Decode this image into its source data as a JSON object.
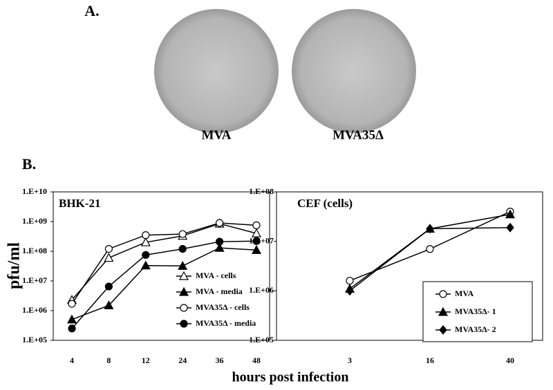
{
  "panel_a": {
    "label": "A.",
    "plates": [
      "MVA",
      "MVA35Δ"
    ]
  },
  "panel_b": {
    "label": "B.",
    "y_label": "pfu/ml",
    "x_label": "hours post infection"
  },
  "chart_data": [
    {
      "type": "line",
      "title": "BHK-21",
      "log_scale": true,
      "categories": [
        "4",
        "8",
        "12",
        "24",
        "36",
        "48"
      ],
      "ylim": [
        100000,
        10000000000
      ],
      "yticks": [
        {
          "value": 100000,
          "label": "1.E+05"
        },
        {
          "value": 1000000,
          "label": "1.E+06"
        },
        {
          "value": 10000000,
          "label": "1.E+07"
        },
        {
          "value": 100000000,
          "label": "1.E+08"
        },
        {
          "value": 1000000000,
          "label": "1.E+09"
        },
        {
          "value": 10000000000,
          "label": "1.E+10"
        }
      ],
      "series": [
        {
          "name": "MVA - cells",
          "color": "#000000",
          "marker": "triangle-open",
          "values": [
            2300000,
            60000000,
            200000000,
            330000000,
            850000000,
            400000000
          ]
        },
        {
          "name": "MVA - media",
          "color": "#000000",
          "marker": "triangle",
          "values": [
            500000,
            1500000,
            33000000,
            32000000,
            130000000,
            110000000
          ]
        },
        {
          "name": "MVA35Δ - cells",
          "color": "#000000",
          "marker": "circle-open",
          "values": [
            1700000,
            120000000,
            350000000,
            380000000,
            900000000,
            750000000
          ]
        },
        {
          "name": "MVA35Δ - media",
          "color": "#000000",
          "marker": "circle",
          "values": [
            250000,
            6500000,
            75000000,
            120000000,
            210000000,
            220000000
          ]
        }
      ]
    },
    {
      "type": "line",
      "title": "CEF (cells)",
      "log_scale": true,
      "legend_box": true,
      "categories": [
        "3",
        "16",
        "40"
      ],
      "ylim": [
        100000,
        100000000
      ],
      "yticks": [
        {
          "value": 100000,
          "label": "1.E+05"
        },
        {
          "value": 1000000,
          "label": "1.E+06"
        },
        {
          "value": 10000000,
          "label": "1.E+07"
        },
        {
          "value": 100000000,
          "label": "1.E+08"
        }
      ],
      "series": [
        {
          "name": "MVA",
          "color": "#000000",
          "marker": "circle-open",
          "values": [
            1600000,
            7000000,
            40000000
          ]
        },
        {
          "name": "MVA35Δ- 1",
          "color": "#000000",
          "marker": "triangle",
          "values": [
            1100000,
            18000000,
            35000000
          ]
        },
        {
          "name": "MVA35Δ- 2",
          "color": "#000000",
          "marker": "diamond",
          "values": [
            1000000,
            18000000,
            19000000
          ]
        }
      ]
    }
  ]
}
